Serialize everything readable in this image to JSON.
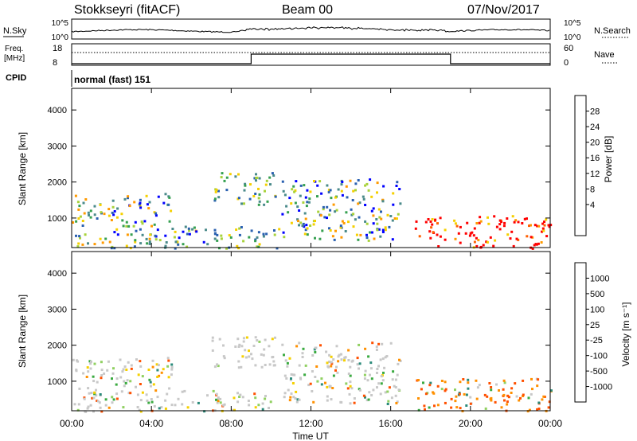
{
  "header": {
    "radar": "Stokkseyri (fitACF)",
    "beam": "Beam 00",
    "date": "07/Nov/2017"
  },
  "noise_panel": {
    "left_label": "N.Sky",
    "left_ticks": [
      "10^5",
      "10^0"
    ],
    "right_label": "N.Search",
    "right_ticks": [
      "10^5",
      "10^0"
    ],
    "right_style": "........"
  },
  "freq_panel": {
    "left_label_1": "Freq.",
    "left_label_2": "[MHz]",
    "left_ticks": [
      "18",
      "8"
    ],
    "right_label": "Nave",
    "right_ticks": [
      "60",
      "0"
    ],
    "right_style": "...."
  },
  "cpid": {
    "label": "CPID",
    "value": "normal (fast) 151"
  },
  "panels": {
    "ylabel": "Slant Range [km]",
    "yticks": [
      "4000",
      "3000",
      "2000",
      "1000"
    ],
    "xlabel": "Time UT",
    "xticks": [
      "00:00",
      "04:00",
      "08:00",
      "12:00",
      "16:00",
      "20:00",
      "00:00"
    ]
  },
  "power_colorbar": {
    "label": "Power [dB]",
    "ticks": [
      "28",
      "24",
      "20",
      "16",
      "12",
      "8",
      "4"
    ],
    "colors": [
      "#ff0000",
      "#ff6000",
      "#ff9a00",
      "#f5d000",
      "#a8d23a",
      "#35a050",
      "#4a8a8a",
      "#2a60b0",
      "#0000ff"
    ]
  },
  "velocity_colorbar": {
    "label": "Velocity [m s⁻¹]",
    "ticks": [
      "1000",
      "500",
      "100",
      "25",
      "-25",
      "-100",
      "-500",
      "-1000"
    ],
    "colors": [
      "#1040c0",
      "#2a8a7a",
      "#3aaa40",
      "#90d060",
      "#c8c8c8",
      "#f5d000",
      "#ff9000",
      "#ff5000",
      "#ff0000"
    ]
  },
  "chart_data": {
    "type": "heatmap",
    "title": "Stokkseyri (fitACF)  Beam 00  07/Nov/2017",
    "xlabel": "Time UT",
    "ylabel": "Slant Range [km]",
    "xlim": [
      0,
      24
    ],
    "ylim": [
      180,
      4600
    ],
    "nave_segments": [
      {
        "from": 0,
        "to": 9,
        "level": "low"
      },
      {
        "from": 9,
        "to": 19,
        "level": "high"
      },
      {
        "from": 19,
        "to": 24,
        "level": "low"
      }
    ],
    "echo_regions": [
      {
        "t0": 0.0,
        "t1": 6.8,
        "r0": 180,
        "r1": 800,
        "power": "mixed",
        "velocity": "mixed"
      },
      {
        "t0": 0.0,
        "t1": 5.0,
        "r0": 800,
        "r1": 1700,
        "power": "mixed",
        "velocity": "mixed"
      },
      {
        "t0": 7.0,
        "t1": 10.5,
        "r0": 180,
        "r1": 800,
        "power": "medium",
        "velocity": "mixed"
      },
      {
        "t0": 7.0,
        "t1": 10.2,
        "r0": 1400,
        "r1": 2300,
        "power": "medium",
        "velocity": "near-zero"
      },
      {
        "t0": 10.5,
        "t1": 16.5,
        "r0": 400,
        "r1": 2100,
        "power": "mixed",
        "velocity": "mixed"
      },
      {
        "t0": 17.2,
        "t1": 24.0,
        "r0": 180,
        "r1": 1100,
        "power": "high",
        "velocity": "negative"
      }
    ]
  }
}
